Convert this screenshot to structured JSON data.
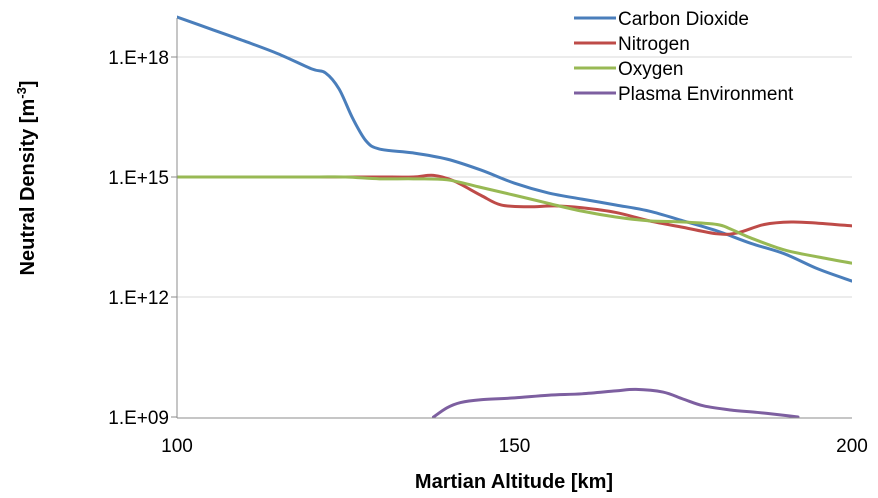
{
  "chart_data": {
    "type": "line",
    "xlabel": "Martian Altitude [km]",
    "ylabel": "Neutral Density [m",
    "ylabel_sup": "-3",
    "ylabel_end": "]",
    "xlim": [
      100,
      200
    ],
    "ylim_log10": [
      9,
      19.2
    ],
    "y_scale": "log",
    "x_ticks": [
      {
        "value": 100,
        "label": "100"
      },
      {
        "value": 150,
        "label": "150"
      },
      {
        "value": 200,
        "label": "200"
      }
    ],
    "y_ticks": [
      {
        "log10": 9,
        "label": "1.E+09"
      },
      {
        "log10": 12,
        "label": "1.E+12"
      },
      {
        "log10": 15,
        "label": "1.E+15"
      },
      {
        "log10": 18,
        "label": "1.E+18"
      }
    ],
    "legend_position": "top-right",
    "series": [
      {
        "name": "Carbon Dioxide",
        "color": "#4a7ebb",
        "x": [
          100,
          105,
          110,
          115,
          120,
          122,
          124,
          126,
          128,
          130,
          135,
          140,
          145,
          150,
          155,
          160,
          165,
          170,
          175,
          180,
          185,
          190,
          195,
          200
        ],
        "y": [
          1e+19,
          5e+18,
          2.5e+18,
          1.2e+18,
          5e+17,
          4e+17,
          1.6e+17,
          3e+16,
          8000000000000000.0,
          5000000000000000.0,
          4000000000000000.0,
          2800000000000000.0,
          1500000000000000.0,
          700000000000000.0,
          400000000000000.0,
          280000000000000.0,
          200000000000000.0,
          140000000000000.0,
          80000000000000.0,
          45000000000000.0,
          22000000000000.0,
          12000000000000.0,
          5000000000000.0,
          2500000000000.0
        ]
      },
      {
        "name": "Nitrogen",
        "color": "#be4b48",
        "x": [
          100,
          110,
          120,
          125,
          130,
          135,
          138,
          141,
          145,
          148,
          152,
          156,
          160,
          165,
          170,
          175,
          180,
          183,
          187,
          191,
          195,
          200
        ],
        "y": [
          1000000000000000.0,
          1000000000000000.0,
          1000000000000000.0,
          1000000000000000.0,
          1000000000000000.0,
          1000000000000000.0,
          1100000000000000.0,
          800000000000000.0,
          350000000000000.0,
          200000000000000.0,
          180000000000000.0,
          190000000000000.0,
          170000000000000.0,
          130000000000000.0,
          80000000000000.0,
          55000000000000.0,
          38000000000000.0,
          40000000000000.0,
          65000000000000.0,
          75000000000000.0,
          70000000000000.0,
          60000000000000.0
        ]
      },
      {
        "name": "Oxygen",
        "color": "#98b954",
        "x": [
          100,
          110,
          120,
          125,
          130,
          135,
          140,
          145,
          150,
          155,
          160,
          165,
          170,
          175,
          180,
          182,
          185,
          190,
          195,
          200
        ],
        "y": [
          1000000000000000.0,
          1000000000000000.0,
          1000000000000000.0,
          1000000000000000.0,
          900000000000000.0,
          900000000000000.0,
          850000000000000.0,
          550000000000000.0,
          350000000000000.0,
          220000000000000.0,
          140000000000000.0,
          100000000000000.0,
          80000000000000.0,
          75000000000000.0,
          65000000000000.0,
          50000000000000.0,
          30000000000000.0,
          15000000000000.0,
          10000000000000.0,
          7000000000000.0
        ]
      },
      {
        "name": "Plasma Environment",
        "color": "#7d5fa0",
        "x": [
          138,
          140,
          142,
          145,
          150,
          155,
          160,
          165,
          168,
          172,
          175,
          178,
          182,
          186,
          190,
          192
        ],
        "y": [
          1000000000.0,
          1700000000.0,
          2300000000.0,
          2700000000.0,
          3000000000.0,
          3500000000.0,
          3800000000.0,
          4500000000.0,
          4900000000.0,
          4200000000.0,
          2800000000.0,
          1900000000.0,
          1500000000.0,
          1300000000.0,
          1100000000.0,
          1000000000.0
        ]
      }
    ]
  }
}
